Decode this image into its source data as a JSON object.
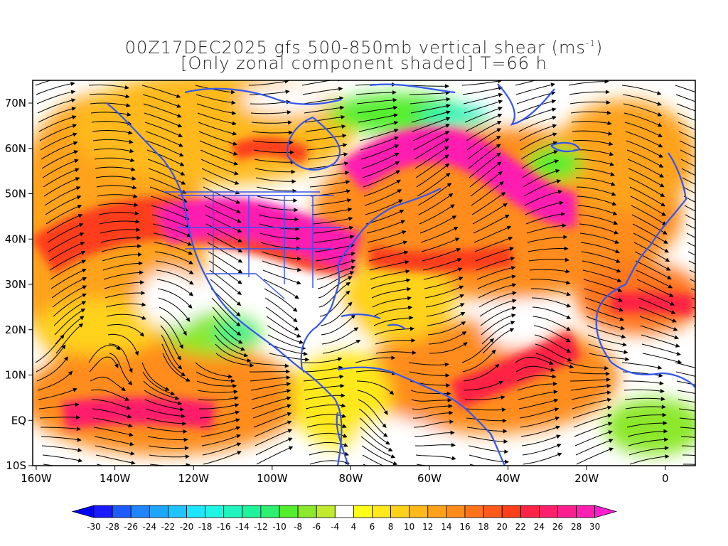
{
  "title": {
    "line1_main": "00Z17DEC2025 gfs 500-850mb vertical shear (ms",
    "line1_sup": "-1",
    "line1_end": ")",
    "line2": "[Only zonal component shaded] T=66 h"
  },
  "map": {
    "lon_ticks": [
      "160W",
      "140W",
      "120W",
      "100W",
      "80W",
      "60W",
      "40W",
      "20W",
      "0"
    ],
    "lat_ticks": [
      "70N",
      "60N",
      "50N",
      "40N",
      "30N",
      "20N",
      "10N",
      "EQ",
      "10S"
    ],
    "coast_color": "#3355ee"
  },
  "colorbar": {
    "labels": [
      "-30",
      "-28",
      "-26",
      "-24",
      "-22",
      "-20",
      "-18",
      "-16",
      "-14",
      "-12",
      "-10",
      "-8",
      "-6",
      "-4",
      "4",
      "6",
      "8",
      "10",
      "12",
      "14",
      "16",
      "18",
      "20",
      "22",
      "24",
      "26",
      "28",
      "30"
    ],
    "colors": [
      "#1a1aff",
      "#1e5bff",
      "#1f86ff",
      "#1ea6ff",
      "#1fc4ff",
      "#1fe5ff",
      "#1ff5e3",
      "#1ff5bd",
      "#1ff29a",
      "#2ef070",
      "#55ee2f",
      "#8ce82b",
      "#c0ea2b",
      "#ffffff",
      "#ffff1a",
      "#ffe91a",
      "#ffd21a",
      "#ffb91a",
      "#ffa21a",
      "#ff8c1a",
      "#ff741a",
      "#ff5a1a",
      "#ff3e1a",
      "#ff2345",
      "#ff1f6b",
      "#ff1f8f",
      "#ff1fb0"
    ]
  }
}
